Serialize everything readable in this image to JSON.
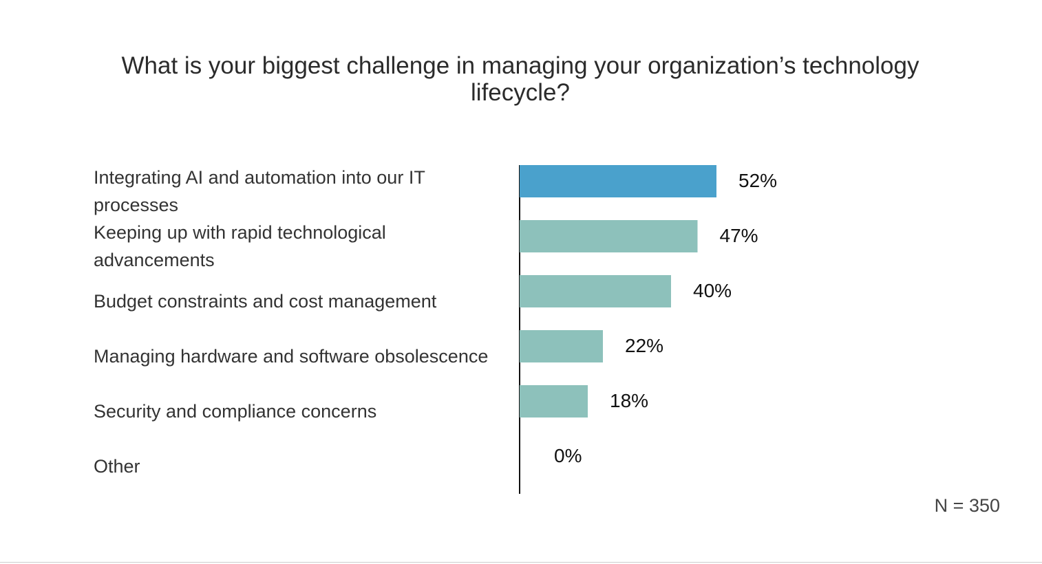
{
  "chart_data": {
    "type": "bar",
    "orientation": "horizontal",
    "title": "What is your biggest challenge in managing your organization’s technology lifecycle?",
    "categories": [
      "Integrating AI and automation into our IT processes",
      "Keeping up with rapid technological advancements",
      "Budget constraints and cost management",
      "Managing hardware and software obsolescence",
      "Security and compliance concerns",
      "Other"
    ],
    "values": [
      52,
      47,
      40,
      22,
      18,
      0
    ],
    "value_labels": [
      "52%",
      "47%",
      "40%",
      "22%",
      "18%",
      "0%"
    ],
    "colors": [
      "#4aa1cc",
      "#8dc1bb",
      "#8dc1bb",
      "#8dc1bb",
      "#8dc1bb",
      "#8dc1bb"
    ],
    "xlim": [
      0,
      100
    ],
    "annotation": "N = 350"
  }
}
